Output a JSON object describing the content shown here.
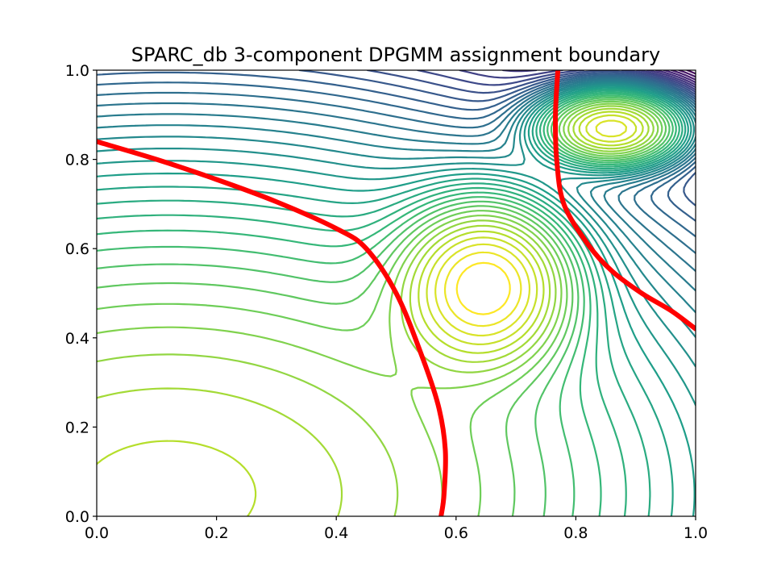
{
  "chart_data": {
    "type": "contour",
    "title": "SPARC_db 3-component DPGMM assignment boundary",
    "xlabel": "",
    "ylabel": "",
    "xlim": [
      0,
      1
    ],
    "ylim": [
      0,
      1
    ],
    "x_ticks": [
      "0.0",
      "0.2",
      "0.4",
      "0.6",
      "0.8",
      "1.0"
    ],
    "y_ticks": [
      "0.0",
      "0.2",
      "0.4",
      "0.6",
      "0.8",
      "1.0"
    ],
    "grid": false,
    "colormap": "viridis",
    "boundary_color": "#ff0000",
    "components": [
      {
        "mean": [
          0.65,
          0.52
        ],
        "sigma": [
          0.085,
          0.11
        ],
        "weight": 1.0
      },
      {
        "mean": [
          0.86,
          0.87
        ],
        "sigma": [
          0.07,
          0.05
        ],
        "weight": 0.95
      },
      {
        "mean": [
          0.12,
          0.05
        ],
        "sigma": [
          0.55,
          0.45
        ],
        "weight": 0.8
      }
    ],
    "decision_boundary": [
      {
        "name": "",
        "points": [
          [
            0.0,
            0.84
          ],
          [
            0.1,
            0.8
          ],
          [
            0.2,
            0.755
          ],
          [
            0.3,
            0.705
          ],
          [
            0.4,
            0.645
          ],
          [
            0.45,
            0.6
          ],
          [
            0.5,
            0.5
          ],
          [
            0.54,
            0.37
          ],
          [
            0.57,
            0.25
          ],
          [
            0.582,
            0.15
          ],
          [
            0.58,
            0.05
          ],
          [
            0.575,
            0.0
          ]
        ]
      },
      {
        "name": "",
        "points": [
          [
            0.77,
            1.0
          ],
          [
            0.766,
            0.9
          ],
          [
            0.768,
            0.8
          ],
          [
            0.78,
            0.7
          ],
          [
            0.82,
            0.61
          ],
          [
            0.86,
            0.55
          ],
          [
            0.91,
            0.5
          ],
          [
            0.96,
            0.46
          ],
          [
            1.0,
            0.42
          ]
        ]
      }
    ]
  }
}
